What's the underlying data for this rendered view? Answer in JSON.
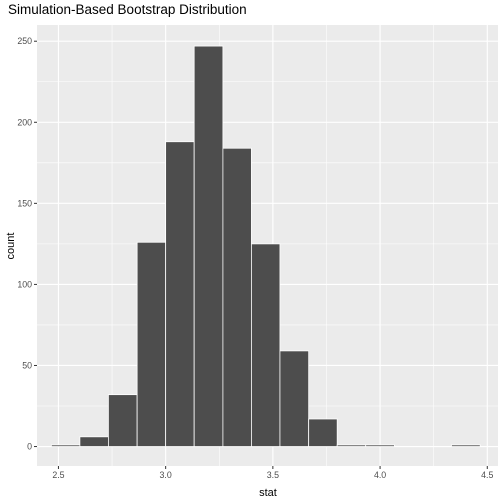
{
  "chart_data": {
    "type": "bar",
    "title": "Simulation-Based Bootstrap Distribution",
    "xlabel": "stat",
    "ylabel": "count",
    "xlim": [
      2.4,
      4.55
    ],
    "ylim": [
      -12,
      260
    ],
    "x_ticks": [
      2.5,
      3.0,
      3.5,
      4.0,
      4.5
    ],
    "x_tick_labels": [
      "2.5",
      "3.0",
      "3.5",
      "4.0",
      "4.5"
    ],
    "y_ticks": [
      0,
      50,
      100,
      150,
      200,
      250
    ],
    "y_tick_labels": [
      "0",
      "50",
      "100",
      "150",
      "200",
      "250"
    ],
    "bin_width": 0.133,
    "bins": [
      {
        "x_start": 2.467,
        "x_end": 2.6,
        "count": 1
      },
      {
        "x_start": 2.6,
        "x_end": 2.733,
        "count": 6
      },
      {
        "x_start": 2.733,
        "x_end": 2.867,
        "count": 32
      },
      {
        "x_start": 2.867,
        "x_end": 3.0,
        "count": 126
      },
      {
        "x_start": 3.0,
        "x_end": 3.133,
        "count": 188
      },
      {
        "x_start": 3.133,
        "x_end": 3.267,
        "count": 247
      },
      {
        "x_start": 3.267,
        "x_end": 3.4,
        "count": 184
      },
      {
        "x_start": 3.4,
        "x_end": 3.533,
        "count": 125
      },
      {
        "x_start": 3.533,
        "x_end": 3.667,
        "count": 59
      },
      {
        "x_start": 3.667,
        "x_end": 3.8,
        "count": 17
      },
      {
        "x_start": 3.8,
        "x_end": 3.933,
        "count": 1
      },
      {
        "x_start": 3.933,
        "x_end": 4.067,
        "count": 1
      },
      {
        "x_start": 4.067,
        "x_end": 4.2,
        "count": 0
      },
      {
        "x_start": 4.2,
        "x_end": 4.333,
        "count": 0
      },
      {
        "x_start": 4.333,
        "x_end": 4.467,
        "count": 1
      }
    ],
    "grid": true,
    "colors": {
      "panel": "#ebebeb",
      "grid_major": "#ffffff",
      "bar_fill": "#4d4d4d",
      "bar_outline": "#ffffff",
      "tick": "#333333"
    }
  }
}
